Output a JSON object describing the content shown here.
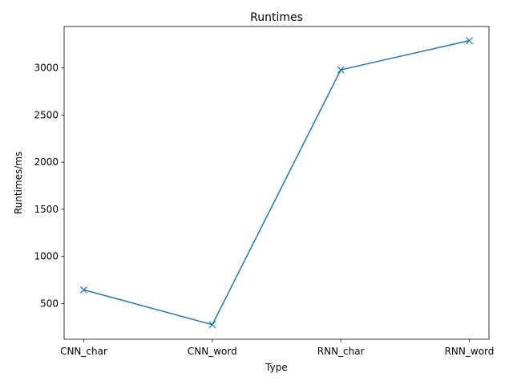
{
  "chart_data": {
    "type": "line",
    "title": "Runtimes",
    "xlabel": "Type",
    "ylabel": "Runtimes/ms",
    "categories": [
      "CNN_char",
      "CNN_word",
      "RNN_char",
      "RNN_word"
    ],
    "series": [
      {
        "values": [
          645,
          275,
          2980,
          3290
        ],
        "color": "#1f77b4",
        "marker": "x"
      }
    ],
    "ylim": [
      120,
      3440
    ],
    "yticks": [
      500,
      1000,
      1500,
      2000,
      2500,
      3000
    ],
    "grid": false
  }
}
